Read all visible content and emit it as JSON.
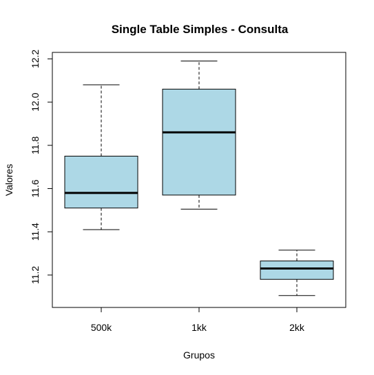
{
  "chart_data": {
    "type": "boxplot",
    "title": "Single Table Simples - Consulta",
    "xlabel": "Grupos",
    "ylabel": "Valores",
    "ylim": [
      11.05,
      12.23
    ],
    "yticks": [
      11.2,
      11.4,
      11.6,
      11.8,
      12.0,
      12.2
    ],
    "ytick_labels": [
      "11.2",
      "11.4",
      "11.6",
      "11.8",
      "12.0",
      "12.2"
    ],
    "box_color": "#add8e6",
    "categories": [
      "500k",
      "1kk",
      "2kk"
    ],
    "boxes": [
      {
        "category": "500k",
        "whisker_low": 11.41,
        "q1": 11.51,
        "median": 11.58,
        "q3": 11.75,
        "whisker_high": 12.08
      },
      {
        "category": "1kk",
        "whisker_low": 11.505,
        "q1": 11.57,
        "median": 11.86,
        "q3": 12.06,
        "whisker_high": 12.19
      },
      {
        "category": "2kk",
        "whisker_low": 11.105,
        "q1": 11.18,
        "median": 11.23,
        "q3": 11.265,
        "whisker_high": 11.315
      }
    ]
  }
}
